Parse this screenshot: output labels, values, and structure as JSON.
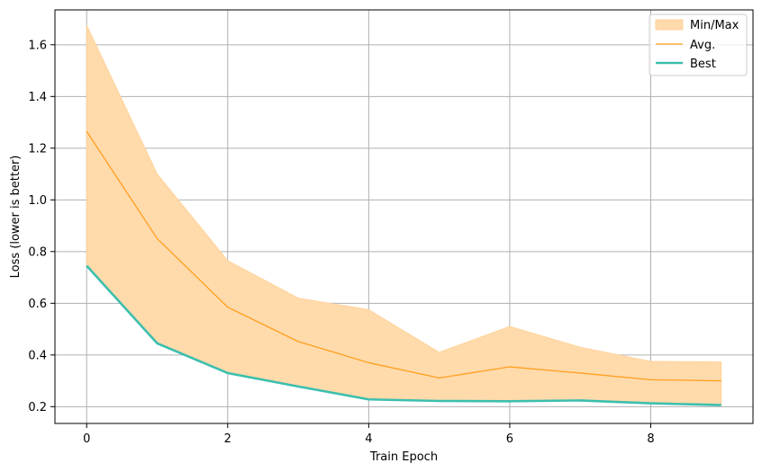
{
  "chart_data": {
    "type": "line",
    "title": "",
    "xlabel": "Train Epoch",
    "ylabel": "Loss (lower is better)",
    "xlim": [
      -0.45,
      9.45
    ],
    "ylim": [
      0.135,
      1.735
    ],
    "x_ticks": [
      0,
      2,
      4,
      6,
      8
    ],
    "y_ticks": [
      0.2,
      0.4,
      0.6,
      0.8,
      1.0,
      1.2,
      1.4,
      1.6
    ],
    "x_tick_labels": [
      "0",
      "2",
      "4",
      "6",
      "8"
    ],
    "y_tick_labels": [
      "0.2",
      "0.4",
      "0.6",
      "0.8",
      "1.0",
      "1.2",
      "1.4",
      "1.6"
    ],
    "grid": true,
    "legend_position": "top-right",
    "x": [
      0,
      1,
      2,
      3,
      4,
      5,
      6,
      7,
      8,
      9
    ],
    "band": {
      "name": "Min/Max",
      "color": "#FFDAAB",
      "edge_color": "#FFD39B",
      "lower": [
        0.745,
        0.445,
        0.33,
        0.278,
        0.228,
        0.222,
        0.221,
        0.224,
        0.213,
        0.206
      ],
      "upper": [
        1.675,
        1.1,
        0.765,
        0.62,
        0.575,
        0.41,
        0.51,
        0.43,
        0.375,
        0.373
      ]
    },
    "series": [
      {
        "name": "Avg.",
        "color": "#FFA01E",
        "values": [
          1.265,
          0.85,
          0.585,
          0.452,
          0.37,
          0.311,
          0.354,
          0.33,
          0.304,
          0.3
        ]
      },
      {
        "name": "Best",
        "color": "#3CBFAE",
        "values": [
          0.745,
          0.445,
          0.33,
          0.278,
          0.228,
          0.222,
          0.221,
          0.224,
          0.213,
          0.206
        ]
      }
    ]
  }
}
